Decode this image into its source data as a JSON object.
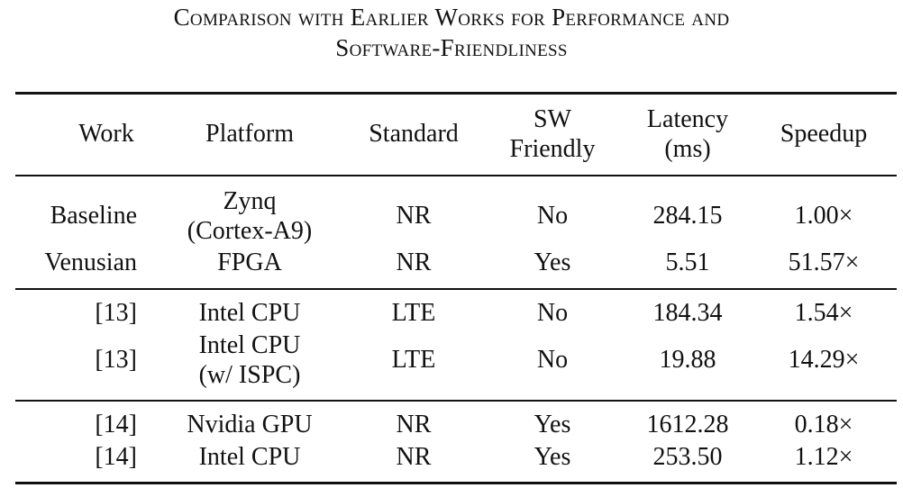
{
  "caption": {
    "line1": "Comparison with Earlier Works for Performance and",
    "line2": "Software-Friendliness"
  },
  "columns": {
    "work": "Work",
    "platform": "Platform",
    "standard": "Standard",
    "sw_line1": "SW",
    "sw_line2": "Friendly",
    "latency_line1": "Latency",
    "latency_line2": "(ms)",
    "speedup": "Speedup"
  },
  "rows": [
    {
      "work": "Baseline",
      "platform_line1": "Zynq",
      "platform_line2": "(Cortex-A9)",
      "standard": "NR",
      "sw": "No",
      "latency": "284.15",
      "speedup": "1.00×"
    },
    {
      "work": "Venusian",
      "platform": "FPGA",
      "standard": "NR",
      "sw": "Yes",
      "latency": "5.51",
      "speedup": "51.57×"
    },
    {
      "work": "[13]",
      "platform": "Intel CPU",
      "standard": "LTE",
      "sw": "No",
      "latency": "184.34",
      "speedup": "1.54×"
    },
    {
      "work": "[13]",
      "platform_line1": "Intel CPU",
      "platform_line2": "(w/ ISPC)",
      "standard": "LTE",
      "sw": "No",
      "latency": "19.88",
      "speedup": "14.29×"
    },
    {
      "work": "[14]",
      "platform": "Nvidia GPU",
      "standard": "NR",
      "sw": "Yes",
      "latency": "1612.28",
      "speedup": "0.18×"
    },
    {
      "work": "[14]",
      "platform": "Intel CPU",
      "standard": "NR",
      "sw": "Yes",
      "latency": "253.50",
      "speedup": "1.12×"
    }
  ]
}
